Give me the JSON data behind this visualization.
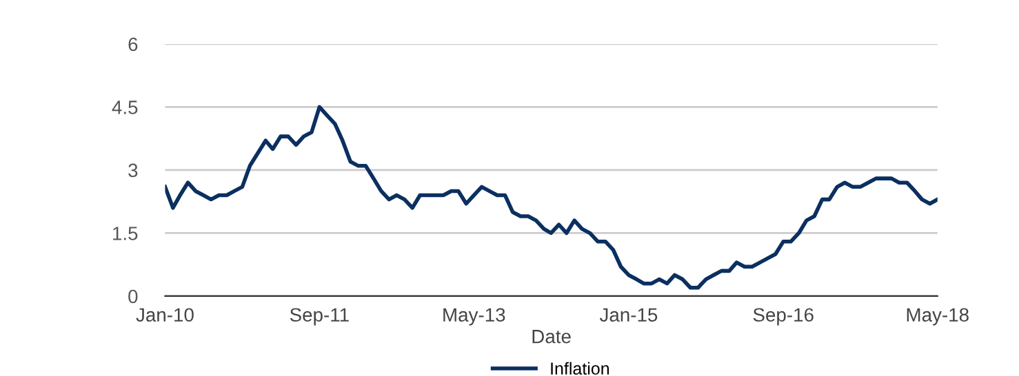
{
  "chart_data": {
    "type": "line",
    "xlabel": "Date",
    "x": [
      "2010-01",
      "2010-02",
      "2010-03",
      "2010-04",
      "2010-05",
      "2010-06",
      "2010-07",
      "2010-08",
      "2010-09",
      "2010-10",
      "2010-11",
      "2010-12",
      "2011-01",
      "2011-02",
      "2011-03",
      "2011-04",
      "2011-05",
      "2011-06",
      "2011-07",
      "2011-08",
      "2011-09",
      "2011-10",
      "2011-11",
      "2011-12",
      "2012-01",
      "2012-02",
      "2012-03",
      "2012-04",
      "2012-05",
      "2012-06",
      "2012-07",
      "2012-08",
      "2012-09",
      "2012-10",
      "2012-11",
      "2012-12",
      "2013-01",
      "2013-02",
      "2013-03",
      "2013-04",
      "2013-05",
      "2013-06",
      "2013-07",
      "2013-08",
      "2013-09",
      "2013-10",
      "2013-11",
      "2013-12",
      "2014-01",
      "2014-02",
      "2014-03",
      "2014-04",
      "2014-05",
      "2014-06",
      "2014-07",
      "2014-08",
      "2014-09",
      "2014-10",
      "2014-11",
      "2014-12",
      "2015-01",
      "2015-02",
      "2015-03",
      "2015-04",
      "2015-05",
      "2015-06",
      "2015-07",
      "2015-08",
      "2015-09",
      "2015-10",
      "2015-11",
      "2015-12",
      "2016-01",
      "2016-02",
      "2016-03",
      "2016-04",
      "2016-05",
      "2016-06",
      "2016-07",
      "2016-08",
      "2016-09",
      "2016-10",
      "2016-11",
      "2016-12",
      "2017-01",
      "2017-02",
      "2017-03",
      "2017-04",
      "2017-05",
      "2017-06",
      "2017-07",
      "2017-08",
      "2017-09",
      "2017-10",
      "2017-11",
      "2017-12",
      "2018-01",
      "2018-02",
      "2018-03",
      "2018-04",
      "2018-05"
    ],
    "series": [
      {
        "name": "Inflation",
        "color": "#0b2f60",
        "values": [
          2.6,
          2.1,
          2.4,
          2.7,
          2.5,
          2.4,
          2.3,
          2.4,
          2.4,
          2.5,
          2.6,
          3.1,
          3.4,
          3.7,
          3.5,
          3.8,
          3.8,
          3.6,
          3.8,
          3.9,
          4.5,
          4.3,
          4.1,
          3.7,
          3.2,
          3.1,
          3.1,
          2.8,
          2.5,
          2.3,
          2.4,
          2.3,
          2.1,
          2.4,
          2.4,
          2.4,
          2.4,
          2.5,
          2.5,
          2.2,
          2.4,
          2.6,
          2.5,
          2.4,
          2.4,
          2.0,
          1.9,
          1.9,
          1.8,
          1.6,
          1.5,
          1.7,
          1.5,
          1.8,
          1.6,
          1.5,
          1.3,
          1.3,
          1.1,
          0.7,
          0.5,
          0.4,
          0.3,
          0.3,
          0.4,
          0.3,
          0.5,
          0.4,
          0.2,
          0.2,
          0.4,
          0.5,
          0.6,
          0.6,
          0.8,
          0.7,
          0.7,
          0.8,
          0.9,
          1.0,
          1.3,
          1.3,
          1.5,
          1.8,
          1.9,
          2.3,
          2.3,
          2.6,
          2.7,
          2.6,
          2.6,
          2.7,
          2.8,
          2.8,
          2.8,
          2.7,
          2.7,
          2.5,
          2.3,
          2.2,
          2.3
        ]
      }
    ],
    "xlim": [
      "2010-01",
      "2018-05"
    ],
    "xticks": [
      {
        "value": "2010-01",
        "label": "Jan-10"
      },
      {
        "value": "2011-09",
        "label": "Sep-11"
      },
      {
        "value": "2013-05",
        "label": "May-13"
      },
      {
        "value": "2015-01",
        "label": "Jan-15"
      },
      {
        "value": "2016-09",
        "label": "Sep-16"
      },
      {
        "value": "2018-05",
        "label": "May-18"
      }
    ],
    "ylim": [
      0,
      6
    ],
    "yticks": [
      0,
      1.5,
      3,
      4.5,
      6
    ],
    "grid": "y",
    "legend": "bottom",
    "marker": "none",
    "line_style": "solid"
  }
}
